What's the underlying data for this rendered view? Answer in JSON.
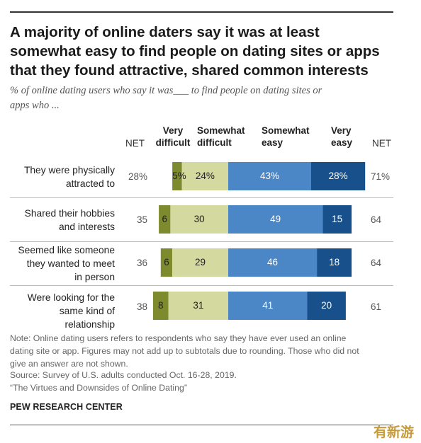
{
  "title_lines": [
    "A majority of online daters say it was at least",
    "somewhat easy to find people on dating sites or apps",
    "that they found attractive, shared common interests"
  ],
  "subtitle_lines": [
    "% of online dating users who say it was___ to find people on dating sites or",
    "apps who ..."
  ],
  "chart_data": {
    "type": "bar",
    "orientation": "horizontal",
    "stacked": "diverging",
    "title": "A majority of online daters say it was at least somewhat easy to find people on dating sites or apps that they found attractive, shared common interests",
    "subtitle": "% of online dating users who say it was___ to find people on dating sites or apps who ...",
    "categories": [
      [
        "They were physically",
        "attracted to"
      ],
      [
        "Shared their hobbies",
        "and interests"
      ],
      [
        "Seemed like someone",
        "they wanted to meet",
        "in person"
      ],
      [
        "Were looking for the",
        "same kind of",
        "relationship"
      ]
    ],
    "net_headers": {
      "left": "NET",
      "right": "NET"
    },
    "net_difficult": [
      "28%",
      "35",
      "36",
      "38"
    ],
    "net_easy": [
      "71%",
      "64",
      "64",
      "61"
    ],
    "series": [
      {
        "name": [
          "Very",
          "difficult"
        ],
        "color": "#7d8a2e",
        "text_color": "#222222",
        "values": [
          5,
          6,
          6,
          8
        ],
        "labels": [
          "5%",
          "6",
          "6",
          "8"
        ]
      },
      {
        "name": [
          "Somewhat",
          "difficult"
        ],
        "color": "#d4d9a0",
        "text_color": "#222222",
        "values": [
          24,
          30,
          29,
          31
        ],
        "labels": [
          "24%",
          "30",
          "29",
          "31"
        ]
      },
      {
        "name": [
          "Somewhat",
          "easy"
        ],
        "color": "#4b86c6",
        "text_color": "#ffffff",
        "values": [
          43,
          49,
          46,
          41
        ],
        "labels": [
          "43%",
          "49",
          "46",
          "41"
        ]
      },
      {
        "name": [
          "Very",
          "easy"
        ],
        "color": "#17508a",
        "text_color": "#ffffff",
        "values": [
          28,
          15,
          18,
          20
        ],
        "labels": [
          "28%",
          "15",
          "18",
          "20"
        ]
      }
    ]
  },
  "notes": [
    "Note: Online dating users refers to respondents who say they have ever used an online",
    "dating site or app. Figures may not add up to subtotals due to rounding. Those who did not",
    "give an answer are not shown."
  ],
  "source": "Source: Survey of U.S. adults conducted Oct. 16-28, 2019.",
  "report": "“The Virtues and Downsides of Online Dating”",
  "brand": "PEW RESEARCH CENTER",
  "watermark": "有新游"
}
